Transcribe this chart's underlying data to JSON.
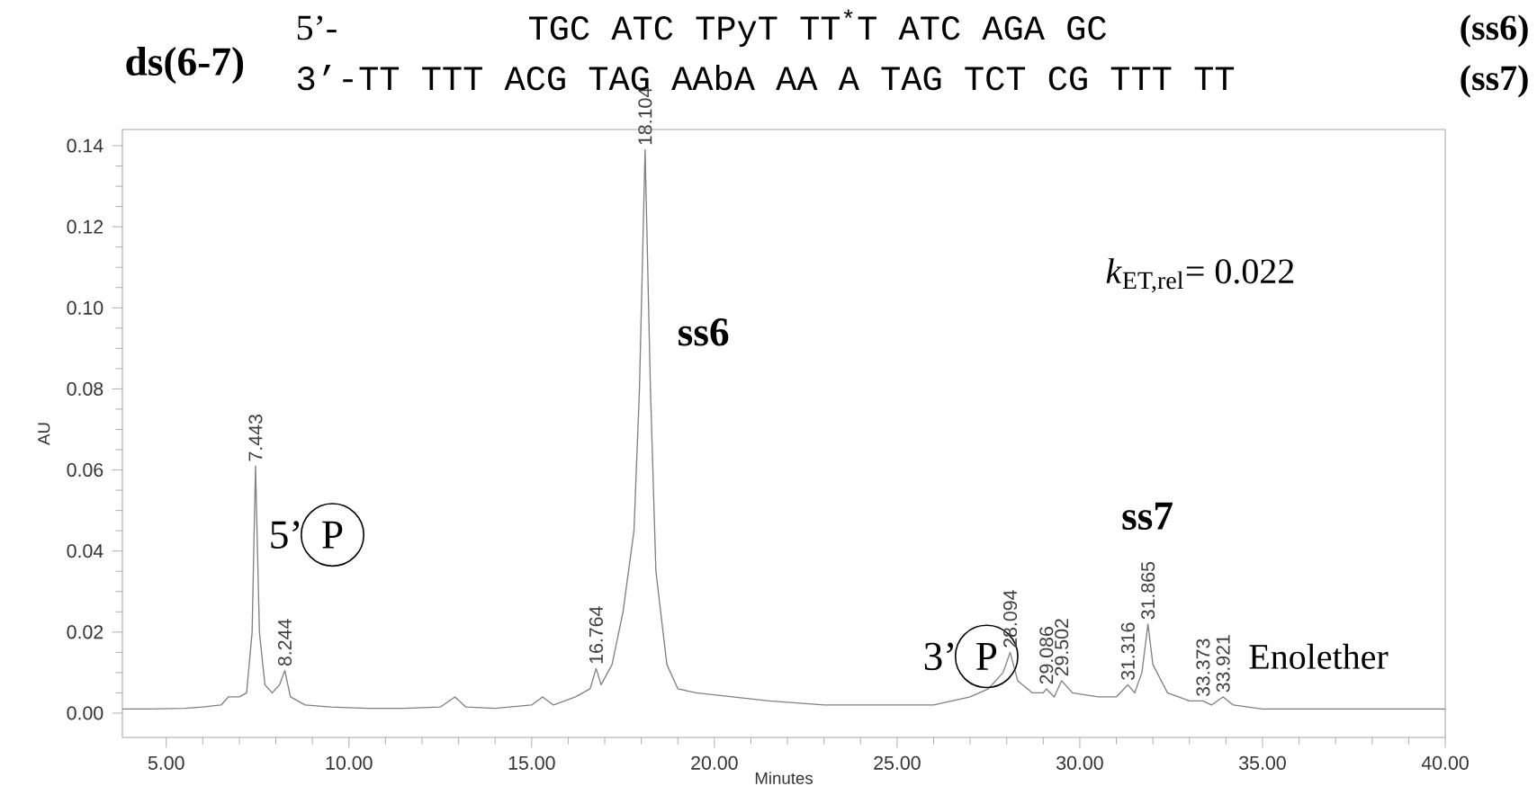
{
  "chart_data": {
    "type": "line",
    "title": "ds(6-7)",
    "xlabel": "Minutes",
    "ylabel": "AU",
    "xlim": [
      3.8,
      40
    ],
    "ylim": [
      -0.006,
      0.144
    ],
    "xticks": [
      {
        "value": 5,
        "label": "5.00"
      },
      {
        "value": 10,
        "label": "10.00"
      },
      {
        "value": 15,
        "label": "15.00"
      },
      {
        "value": 20,
        "label": "20.00"
      },
      {
        "value": 25,
        "label": "25.00"
      },
      {
        "value": 30,
        "label": "30.00"
      },
      {
        "value": 35,
        "label": "35.00"
      },
      {
        "value": 40,
        "label": "40.00"
      }
    ],
    "yticks": [
      {
        "value": 0,
        "label": "0.00"
      },
      {
        "value": 0.02,
        "label": "0.02"
      },
      {
        "value": 0.04,
        "label": "0.04"
      },
      {
        "value": 0.06,
        "label": "0.06"
      },
      {
        "value": 0.08,
        "label": "0.08"
      },
      {
        "value": 0.1,
        "label": "0.10"
      },
      {
        "value": 0.12,
        "label": "0.12"
      },
      {
        "value": 0.14,
        "label": "0.14"
      }
    ],
    "x": [
      3.8,
      4.5,
      5.5,
      6.0,
      6.5,
      6.7,
      7.0,
      7.2,
      7.35,
      7.443,
      7.55,
      7.7,
      7.9,
      8.1,
      8.244,
      8.4,
      8.8,
      9.5,
      10.5,
      11.5,
      12.5,
      12.9,
      13.2,
      14.0,
      15.0,
      15.3,
      15.6,
      16.2,
      16.6,
      16.764,
      16.9,
      17.2,
      17.5,
      17.8,
      17.95,
      18.104,
      18.25,
      18.4,
      18.7,
      19.0,
      19.5,
      20.5,
      21.5,
      23,
      25,
      26,
      27,
      27.5,
      27.9,
      28.094,
      28.3,
      28.7,
      29.0,
      29.086,
      29.3,
      29.502,
      29.8,
      30.5,
      31.0,
      31.316,
      31.5,
      31.7,
      31.865,
      32.0,
      32.4,
      33.0,
      33.373,
      33.6,
      33.921,
      34.2,
      35,
      37,
      40
    ],
    "series": [
      {
        "color": "#808080",
        "values": [
          0.001,
          0.001,
          0.0012,
          0.0015,
          0.002,
          0.004,
          0.004,
          0.005,
          0.02,
          0.061,
          0.02,
          0.007,
          0.005,
          0.007,
          0.0105,
          0.004,
          0.002,
          0.0015,
          0.0012,
          0.0012,
          0.0015,
          0.004,
          0.0015,
          0.0012,
          0.002,
          0.004,
          0.002,
          0.004,
          0.006,
          0.011,
          0.007,
          0.012,
          0.025,
          0.045,
          0.08,
          0.139,
          0.08,
          0.035,
          0.012,
          0.006,
          0.005,
          0.004,
          0.003,
          0.002,
          0.002,
          0.002,
          0.004,
          0.006,
          0.01,
          0.015,
          0.008,
          0.005,
          0.005,
          0.006,
          0.004,
          0.008,
          0.005,
          0.004,
          0.004,
          0.007,
          0.005,
          0.01,
          0.022,
          0.012,
          0.005,
          0.003,
          0.003,
          0.002,
          0.004,
          0.002,
          0.001,
          0.001,
          0.001
        ]
      }
    ],
    "annotations": [
      "5’-",
      "TGC ATC TPyT TT$^{*}$T ATC AGA GC",
      "(ss6)",
      "3’-TT TTT ACG TAG AAbA AA A TAG TCT CG TTT TT",
      "(ss7)",
      "ss6",
      "ss7",
      "5’",
      "P",
      "3’",
      "P",
      "Enolether",
      "*k*$_{ET,rel}$= 0.022",
      {
        "text": "7.443",
        "x": 7.443,
        "y": 0.061
      },
      {
        "text": "8.244",
        "x": 8.244,
        "y": 0.0105
      },
      {
        "text": "16.764",
        "x": 16.764,
        "y": 0.011
      },
      {
        "text": "18.104",
        "x": 18.104,
        "y": 0.139
      },
      {
        "text": "28.094",
        "x": 28.094,
        "y": 0.015
      },
      {
        "text": "29.086",
        "x": 29.086,
        "y": 0.006
      },
      {
        "text": "29.502",
        "x": 29.502,
        "y": 0.008
      },
      {
        "text": "31.316",
        "x": 31.316,
        "y": 0.007
      },
      {
        "text": "31.865",
        "x": 31.865,
        "y": 0.022
      },
      {
        "text": "33.373",
        "x": 33.373,
        "y": 0.003
      },
      {
        "text": "33.921",
        "x": 33.921,
        "y": 0.004
      }
    ]
  }
}
